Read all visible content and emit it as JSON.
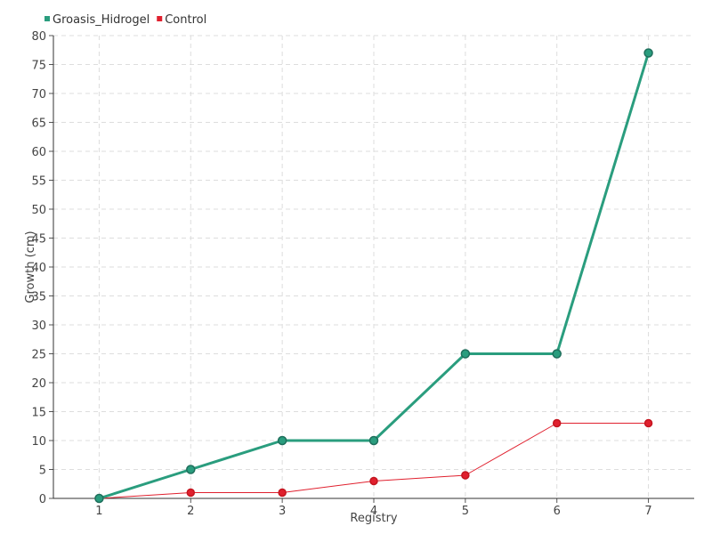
{
  "chart_data": {
    "type": "line",
    "title": "",
    "xlabel": "Registry",
    "ylabel": "Growth (cm)",
    "x": [
      1,
      2,
      3,
      4,
      5,
      6,
      7
    ],
    "xlim": [
      0.5,
      7.5
    ],
    "ylim": [
      0,
      80
    ],
    "yticks": [
      0,
      5,
      10,
      15,
      20,
      25,
      30,
      35,
      40,
      45,
      50,
      55,
      60,
      65,
      70,
      75,
      80
    ],
    "grid": true,
    "legend_position": "top-left",
    "series": [
      {
        "name": "Groasis_Hidrogel",
        "color": "#2a9d7e",
        "values": [
          0,
          5,
          10,
          10,
          25,
          25,
          77
        ]
      },
      {
        "name": "Control",
        "color": "#e0202e",
        "values": [
          0,
          1,
          1,
          3,
          4,
          13,
          13
        ]
      }
    ]
  }
}
